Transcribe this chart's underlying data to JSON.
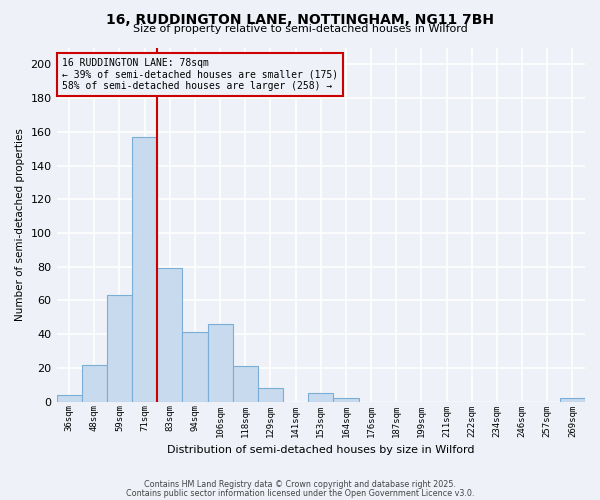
{
  "title": "16, RUDDINGTON LANE, NOTTINGHAM, NG11 7BH",
  "subtitle": "Size of property relative to semi-detached houses in Wilford",
  "xlabel": "Distribution of semi-detached houses by size in Wilford",
  "ylabel": "Number of semi-detached properties",
  "bar_color": "#c8daee",
  "bar_edge_color": "#7aaed6",
  "background_color": "#eef2f8",
  "grid_color": "#ffffff",
  "vline_color": "#cc0000",
  "vline_x": 83,
  "annotation_title": "16 RUDDINGTON LANE: 78sqm",
  "annotation_line1": "← 39% of semi-detached houses are smaller (175)",
  "annotation_line2": "58% of semi-detached houses are larger (258) →",
  "annotation_box_edge_color": "#cc0000",
  "footer_line1": "Contains HM Land Registry data © Crown copyright and database right 2025.",
  "footer_line2": "Contains public sector information licensed under the Open Government Licence v3.0.",
  "bin_labels": [
    "36sqm",
    "48sqm",
    "59sqm",
    "71sqm",
    "83sqm",
    "94sqm",
    "106sqm",
    "118sqm",
    "129sqm",
    "141sqm",
    "153sqm",
    "164sqm",
    "176sqm",
    "187sqm",
    "199sqm",
    "211sqm",
    "222sqm",
    "234sqm",
    "246sqm",
    "257sqm",
    "269sqm"
  ],
  "bar_heights": [
    4,
    22,
    63,
    157,
    79,
    41,
    46,
    21,
    8,
    0,
    5,
    2,
    0,
    0,
    0,
    0,
    0,
    0,
    0,
    0,
    2
  ],
  "n_bins": 21,
  "ylim": [
    0,
    210
  ],
  "yticks": [
    0,
    20,
    40,
    60,
    80,
    100,
    120,
    140,
    160,
    180,
    200
  ]
}
